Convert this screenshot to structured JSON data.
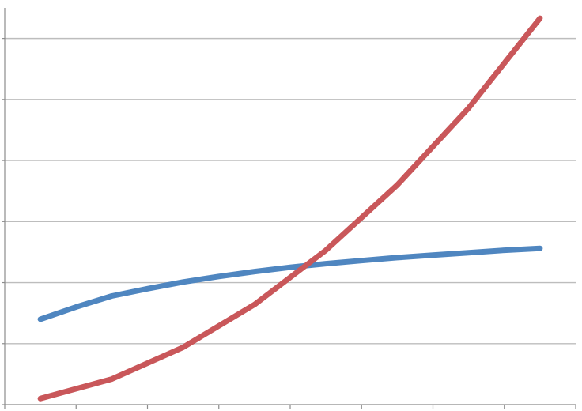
{
  "chart_data": {
    "type": "line",
    "x": [
      1,
      2,
      3,
      4,
      5,
      6,
      7,
      8
    ],
    "xlim": [
      0.5,
      8.5
    ],
    "ylim": [
      0,
      6.5
    ],
    "grid": true,
    "legend": "none",
    "series": [
      {
        "color": "#4f86c0",
        "points": [
          [
            1,
            1.4
          ],
          [
            1.5,
            1.6
          ],
          [
            2,
            1.78
          ],
          [
            2.5,
            1.9
          ],
          [
            3,
            2.01
          ],
          [
            3.5,
            2.1
          ],
          [
            4,
            2.18
          ],
          [
            4.5,
            2.25
          ],
          [
            5,
            2.31
          ],
          [
            5.5,
            2.36
          ],
          [
            6,
            2.41
          ],
          [
            6.5,
            2.45
          ],
          [
            7,
            2.49
          ],
          [
            7.5,
            2.53
          ],
          [
            8,
            2.56
          ]
        ]
      },
      {
        "color": "#c9575a",
        "points": [
          [
            1,
            0.1
          ],
          [
            2,
            0.42
          ],
          [
            3,
            0.94
          ],
          [
            4,
            1.64
          ],
          [
            5,
            2.53
          ],
          [
            6,
            3.6
          ],
          [
            7,
            4.86
          ],
          [
            8,
            6.33
          ]
        ]
      }
    ]
  }
}
